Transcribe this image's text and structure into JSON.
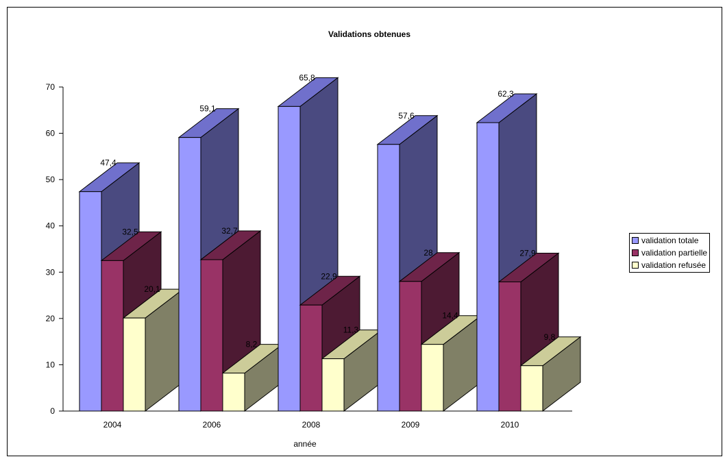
{
  "chart_data": {
    "type": "bar",
    "title": "Validations obtenues",
    "xlabel": "année",
    "ylabel": "",
    "categories": [
      "2004",
      "2006",
      "2008",
      "2009",
      "2010"
    ],
    "ylim": [
      0,
      70
    ],
    "yticks": [
      "0",
      "10",
      "20",
      "30",
      "40",
      "50",
      "60",
      "70"
    ],
    "three_d": true,
    "grid": false,
    "legend_position": "right",
    "series": [
      {
        "name": "validation totale",
        "values": [
          47.4,
          59.1,
          65.8,
          57.6,
          62.3
        ],
        "value_labels": [
          "47,4",
          "59,1",
          "65,8",
          "57,6",
          "62,3"
        ],
        "color": "#9999ff",
        "top_color": "#7070cc",
        "side_color": "#4a4a80"
      },
      {
        "name": "validation partielle",
        "values": [
          32.5,
          32.7,
          22.9,
          28,
          27.9
        ],
        "value_labels": [
          "32,5",
          "32,7",
          "22,9",
          "28",
          "27,9"
        ],
        "color": "#993366",
        "top_color": "#6e2449",
        "side_color": "#4d1a33"
      },
      {
        "name": "validation refusée",
        "values": [
          20.1,
          8.2,
          11.3,
          14.4,
          9.8
        ],
        "value_labels": [
          "20,1",
          "8,2",
          "11,3",
          "14,4",
          "9,8"
        ],
        "color": "#ffffcc",
        "top_color": "#cccc99",
        "side_color": "#808066"
      }
    ]
  }
}
